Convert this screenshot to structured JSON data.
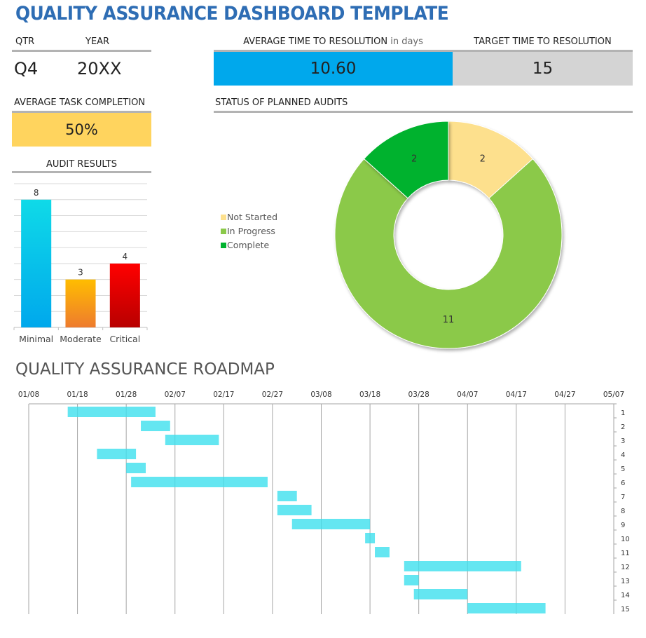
{
  "title": "QUALITY ASSURANCE DASHBOARD TEMPLATE",
  "qtr": {
    "label": "QTR",
    "value": "Q4"
  },
  "year": {
    "label": "YEAR",
    "value": "20XX"
  },
  "avg_time": {
    "label": "AVERAGE TIME TO RESOLUTION",
    "suffix": "in days",
    "value": "10.60",
    "color": "#00A8EC"
  },
  "target_time": {
    "label": "TARGET TIME TO RESOLUTION",
    "value": "15",
    "color": "#D4D4D4"
  },
  "avg_task": {
    "label": "AVERAGE TASK COMPLETION",
    "value": "50%",
    "color": "#FFD45E"
  },
  "chart_data": [
    {
      "type": "bar",
      "title": "AUDIT RESULTS",
      "categories": [
        "Minimal",
        "Moderate",
        "Critical"
      ],
      "values": [
        8,
        3,
        4
      ],
      "ylim": [
        0,
        9
      ],
      "grid": true,
      "colors": [
        [
          "#0FDAE8",
          "#00A8EC"
        ],
        [
          "#FFBD00",
          "#EE7B2E"
        ],
        [
          "#FF0000",
          "#B80000"
        ]
      ]
    },
    {
      "type": "pie",
      "title": "STATUS OF PLANNED AUDITS",
      "donut": true,
      "categories": [
        "Not Started",
        "In Progress",
        "Complete"
      ],
      "values": [
        2,
        11,
        2
      ],
      "colors": [
        "#FDE08D",
        "#8BC94A",
        "#00B22F"
      ],
      "legend": "left"
    },
    {
      "type": "bar",
      "subtype": "gantt",
      "title": "QUALITY ASSURANCE ROADMAP",
      "x_ticks": [
        "01/08",
        "01/18",
        "01/28",
        "02/07",
        "02/17",
        "02/27",
        "03/08",
        "03/18",
        "03/28",
        "04/07",
        "04/17",
        "04/27",
        "05/07"
      ],
      "xlim": [
        "01/08",
        "05/07"
      ],
      "tasks": [
        1,
        2,
        3,
        4,
        5,
        6,
        7,
        8,
        9,
        10,
        11,
        12,
        13,
        14,
        15
      ],
      "start": [
        "01/16",
        "01/31",
        "02/05",
        "01/22",
        "01/28",
        "01/29",
        "02/28",
        "02/28",
        "03/02",
        "03/17",
        "03/19",
        "03/25",
        "03/25",
        "03/27",
        "04/07"
      ],
      "end": [
        "02/03",
        "02/06",
        "02/16",
        "01/30",
        "02/01",
        "02/26",
        "03/03",
        "03/06",
        "03/18",
        "03/19",
        "03/22",
        "04/18",
        "03/28",
        "04/07",
        "04/23"
      ],
      "color": "#3DE0EE",
      "grid": true
    }
  ]
}
